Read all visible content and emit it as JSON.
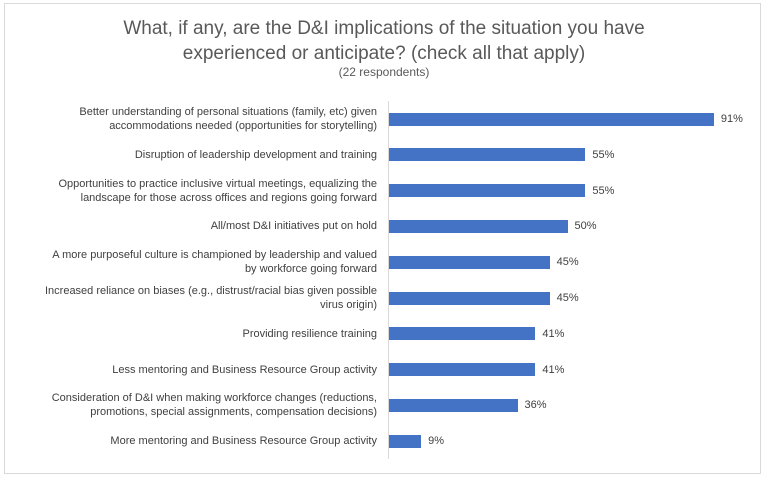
{
  "chart_data": {
    "type": "bar",
    "orientation": "horizontal",
    "title_lines": [
      "What, if any, are the D&I implications of the situation you have",
      "experienced or anticipate? (check all that apply)"
    ],
    "subtitle": "(22 respondents)",
    "categories": [
      [
        "Better understanding of personal situations (family, etc) given",
        "accommodations needed (opportunities for storytelling)"
      ],
      [
        "Disruption of leadership development and training"
      ],
      [
        "Opportunities to practice inclusive virtual meetings, equalizing the",
        "landscape for those across offices and regions going forward"
      ],
      [
        "All/most D&I initiatives put on hold"
      ],
      [
        "A more purposeful culture is championed by leadership and valued",
        "by workforce going forward"
      ],
      [
        "Increased reliance on biases (e.g., distrust/racial bias given possible",
        "virus origin)"
      ],
      [
        "Providing resilience training "
      ],
      [
        "Less mentoring and Business Resource Group activity"
      ],
      [
        "Consideration of D&I when making workforce changes (reductions,",
        "promotions, special assignments, compensation decisions)"
      ],
      [
        "More mentoring and Business Resource Group activity"
      ]
    ],
    "values": [
      91,
      55,
      55,
      50,
      45,
      45,
      41,
      41,
      36,
      9
    ],
    "value_labels": [
      "91%",
      "55%",
      "55%",
      "50%",
      "45%",
      "45%",
      "41%",
      "41%",
      "36%",
      "9%"
    ],
    "unit": "%",
    "xlim": [
      0,
      100
    ],
    "color": "#4472c4",
    "grid": false,
    "legend": "none"
  }
}
